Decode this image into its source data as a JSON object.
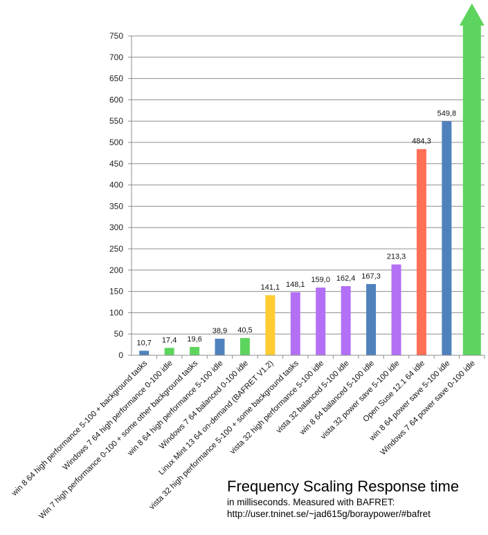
{
  "chart_data": {
    "type": "bar",
    "title": "Frequency Scaling Response time",
    "subtitle": "in milliseconds. Measured with BAFRET:",
    "source": "http://user.tninet.se/~jad615g/boraypower/#bafret",
    "xlabel": "",
    "ylabel": "",
    "ylim": [
      0,
      750
    ],
    "yticks": [
      0,
      50,
      100,
      150,
      200,
      250,
      300,
      350,
      400,
      450,
      500,
      550,
      600,
      650,
      700,
      750
    ],
    "grid": true,
    "legend": "none",
    "bars": [
      {
        "category": "win 8 64 high performance 5-100 + background tasks",
        "value": 10.7,
        "label": "10,7",
        "color": "#4f81bd"
      },
      {
        "category": "Windows 7 64 high performance 0-100 idle",
        "value": 17.4,
        "label": "17,4",
        "color": "#5dd45d"
      },
      {
        "category": "Win 7 high performance 0-100 + some other background tasks",
        "value": 19.6,
        "label": "19,6",
        "color": "#5dd45d"
      },
      {
        "category": "win 8 64 high performance 5-100 idle",
        "value": 38.9,
        "label": "38,9",
        "color": "#4f81bd"
      },
      {
        "category": "Windows 7 64 balanced 0-100 idle",
        "value": 40.5,
        "label": "40,5",
        "color": "#5dd45d"
      },
      {
        "category": "Linux Mint 13 64 on-demand (BAFRET V1.2)",
        "value": 141.1,
        "label": "141,1",
        "color": "#ffcc33"
      },
      {
        "category": "vista 32 high performance 5-100 + some background tasks",
        "value": 148.1,
        "label": "148,1",
        "color": "#b370f5"
      },
      {
        "category": "vista 32 high performance 5-100 idle",
        "value": 159.0,
        "label": "159,0",
        "color": "#b370f5"
      },
      {
        "category": "vista 32 balanced 5-100 idle",
        "value": 162.4,
        "label": "162,4",
        "color": "#b370f5"
      },
      {
        "category": "win 8 64 balanced 5-100 idle",
        "value": 167.3,
        "label": "167,3",
        "color": "#4f81bd"
      },
      {
        "category": "vista 32 power save 5-100 idle",
        "value": 213.3,
        "label": "213,3",
        "color": "#b370f5"
      },
      {
        "category": "Open Suse 12.1 64 idle",
        "value": 484.3,
        "label": "484,3",
        "color": "#ff7055"
      },
      {
        "category": "win 8 64 power save 5-100 idle",
        "value": 549.8,
        "label": "549,8",
        "color": "#4f81bd"
      },
      {
        "category": "Windows 7 64 power save 0-100 idle",
        "value": null,
        "label": "",
        "color": "#5dd45d",
        "off_scale": true
      }
    ]
  }
}
